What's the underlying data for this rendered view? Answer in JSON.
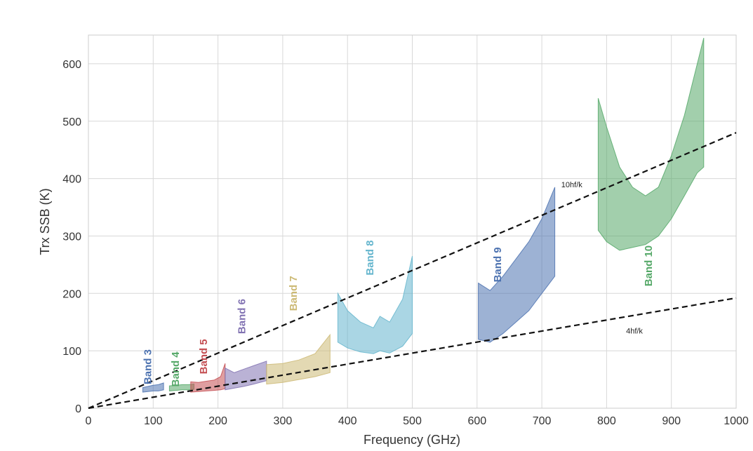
{
  "chart_data": {
    "type": "area",
    "xlabel": "Frequency  (GHz)",
    "ylabel": "Trx SSB  (K)",
    "xlim": [
      0,
      1000
    ],
    "ylim": [
      0,
      650
    ],
    "x_ticks": [
      "0",
      "100",
      "200",
      "300",
      "400",
      "500",
      "600",
      "700",
      "800",
      "900",
      "1000"
    ],
    "y_ticks": [
      "0",
      "100",
      "200",
      "300",
      "400",
      "500",
      "600"
    ],
    "grid": true,
    "series": [
      {
        "name": "Band 3",
        "color": "#4c72b0",
        "x": [
          84,
          92,
          100,
          108,
          116
        ],
        "y_low": [
          28,
          29,
          30,
          30,
          32
        ],
        "y_high": [
          36,
          38,
          40,
          41,
          44
        ]
      },
      {
        "name": "Band 4",
        "color": "#55a868",
        "x": [
          125,
          135,
          145,
          155,
          163
        ],
        "y_low": [
          30,
          31,
          32,
          32,
          33
        ],
        "y_high": [
          39,
          40,
          41,
          41,
          42
        ]
      },
      {
        "name": "Band 5",
        "color": "#c44e52",
        "x": [
          158,
          170,
          182,
          194,
          204,
          211
        ],
        "y_low": [
          28,
          29,
          30,
          31,
          32,
          34
        ],
        "y_high": [
          46,
          45,
          47,
          49,
          55,
          78
        ]
      },
      {
        "name": "Band 6",
        "color": "#8172b2",
        "x": [
          211,
          225,
          240,
          255,
          275
        ],
        "y_low": [
          32,
          35,
          38,
          42,
          48
        ],
        "y_high": [
          70,
          62,
          68,
          74,
          82
        ]
      },
      {
        "name": "Band 7",
        "color": "#ccb974",
        "x": [
          275,
          300,
          325,
          350,
          373
        ],
        "y_low": [
          42,
          45,
          50,
          55,
          62
        ],
        "y_high": [
          76,
          78,
          84,
          95,
          128
        ]
      },
      {
        "name": "Band 8",
        "color": "#64b5cd",
        "x": [
          385,
          400,
          420,
          440,
          450,
          465,
          485,
          500
        ],
        "y_low": [
          115,
          105,
          98,
          95,
          100,
          96,
          108,
          130
        ],
        "y_high": [
          200,
          170,
          150,
          140,
          160,
          150,
          190,
          265
        ]
      },
      {
        "name": "Band 9",
        "color": "#4c72b0",
        "x": [
          602,
          620,
          640,
          660,
          680,
          700,
          720
        ],
        "y_low": [
          120,
          115,
          130,
          150,
          170,
          200,
          230
        ],
        "y_high": [
          218,
          205,
          230,
          260,
          290,
          330,
          385
        ]
      },
      {
        "name": "Band 10",
        "color": "#55a868",
        "x": [
          787,
          800,
          820,
          840,
          860,
          880,
          900,
          920,
          940,
          950
        ],
        "y_low": [
          310,
          290,
          275,
          280,
          285,
          300,
          330,
          370,
          410,
          420
        ],
        "y_high": [
          540,
          490,
          420,
          385,
          370,
          385,
          440,
          510,
          600,
          645
        ]
      }
    ],
    "band_labels": [
      {
        "text": "Band 3",
        "color": "#4c72b0",
        "x": 97,
        "y": 72
      },
      {
        "text": "Band 4",
        "color": "#55a868",
        "x": 140,
        "y": 68
      },
      {
        "text": "Band 5",
        "color": "#c44e52",
        "x": 183,
        "y": 90
      },
      {
        "text": "Band 6",
        "color": "#8172b2",
        "x": 242,
        "y": 160
      },
      {
        "text": "Band 7",
        "color": "#ccb974",
        "x": 322,
        "y": 200
      },
      {
        "text": "Band 8",
        "color": "#64b5cd",
        "x": 440,
        "y": 262
      },
      {
        "text": "Band 9",
        "color": "#4c72b0",
        "x": 637,
        "y": 250
      },
      {
        "text": "Band 10",
        "color": "#55a868",
        "x": 870,
        "y": 248
      }
    ],
    "reference_lines": [
      {
        "name": "10hf/k",
        "slope": 0.48,
        "label_x": 730,
        "label_y": 385
      },
      {
        "name": "4hf/k",
        "slope": 0.192,
        "label_x": 830,
        "label_y": 130
      }
    ]
  }
}
